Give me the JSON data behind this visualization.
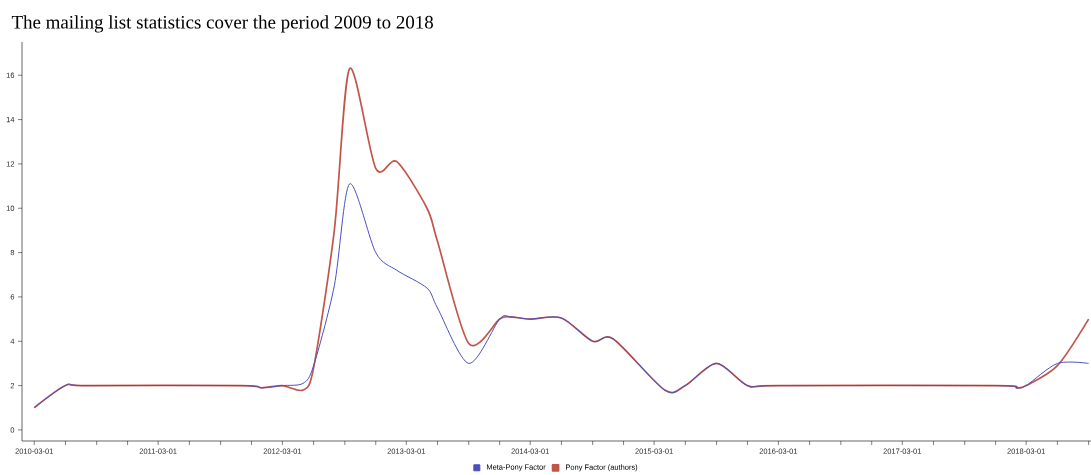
{
  "chart_data": {
    "type": "line",
    "title": "The mailing list statistics cover the period 2009 to 2018",
    "x": [
      "2010-03-01",
      "2010-06-01",
      "2010-08-01",
      "2011-11-01",
      "2012-01-01",
      "2012-03-01",
      "2012-05-01",
      "2012-06-01",
      "2012-08-01",
      "2012-09-15",
      "2012-12-01",
      "2013-02-01",
      "2013-05-01",
      "2013-06-01",
      "2013-09-01",
      "2013-12-01",
      "2014-01-01",
      "2014-03-01",
      "2014-06-01",
      "2014-09-01",
      "2014-11-01",
      "2015-04-01",
      "2015-06-01",
      "2015-09-01",
      "2015-12-01",
      "2016-03-01",
      "2017-12-01",
      "2018-02-01",
      "2018-03-01",
      "2018-06-01",
      "2018-09-01"
    ],
    "series": [
      {
        "name": "Meta-Pony Factor",
        "color": "#4a4fc4",
        "values": [
          1,
          2,
          2,
          2,
          1.9,
          2,
          2.1,
          2.9,
          6.5,
          11.1,
          8,
          7.2,
          6.4,
          5.5,
          3,
          5,
          5.1,
          5,
          5.05,
          4,
          4.1,
          1.8,
          2,
          3,
          2,
          2,
          2,
          1.9,
          2,
          3,
          3
        ]
      },
      {
        "name": "Pony Factor (authors)",
        "color": "#c0564a",
        "values": [
          1,
          2,
          2,
          2,
          1.9,
          2,
          1.8,
          2.8,
          9,
          16.3,
          11.8,
          12.1,
          10,
          8.5,
          3.9,
          5,
          5.1,
          5,
          5.05,
          4,
          4.1,
          1.8,
          2,
          3,
          2,
          2,
          2,
          1.9,
          2,
          2.9,
          5
        ]
      }
    ],
    "xlim": [
      "2010-01-24",
      "2018-09-08"
    ],
    "ylim": [
      -0.5,
      17.5
    ],
    "yticks": [
      0,
      2,
      4,
      6,
      8,
      10,
      12,
      14,
      16
    ],
    "xticks": [
      "2010-03-01",
      {
        "value": "2010-06-01",
        "label": null
      },
      {
        "value": "2010-09-01",
        "label": null
      },
      {
        "value": "2010-12-01",
        "label": null
      },
      "2011-03-01",
      {
        "value": "2011-06-01",
        "label": null
      },
      {
        "value": "2011-09-01",
        "label": null
      },
      {
        "value": "2011-12-01",
        "label": null
      },
      "2012-03-01",
      {
        "value": "2012-06-01",
        "label": null
      },
      {
        "value": "2012-09-01",
        "label": null
      },
      {
        "value": "2012-12-01",
        "label": null
      },
      "2013-03-01",
      {
        "value": "2013-06-01",
        "label": null
      },
      {
        "value": "2013-09-01",
        "label": null
      },
      {
        "value": "2013-12-01",
        "label": null
      },
      "2014-03-01",
      {
        "value": "2014-06-01",
        "label": null
      },
      {
        "value": "2014-09-01",
        "label": null
      },
      {
        "value": "2014-12-01",
        "label": null
      },
      "2015-03-01",
      {
        "value": "2015-06-01",
        "label": null
      },
      {
        "value": "2015-09-01",
        "label": null
      },
      {
        "value": "2015-12-01",
        "label": null
      },
      "2016-03-01",
      {
        "value": "2016-06-01",
        "label": null
      },
      {
        "value": "2016-09-01",
        "label": null
      },
      {
        "value": "2016-12-01",
        "label": null
      },
      "2017-03-01",
      {
        "value": "2017-06-01",
        "label": null
      },
      {
        "value": "2017-09-01",
        "label": null
      },
      {
        "value": "2017-12-01",
        "label": null
      },
      "2018-03-01",
      {
        "value": "2018-06-01",
        "label": null
      },
      {
        "value": "2018-09-01",
        "label": null
      }
    ],
    "grid": false,
    "legend": "bottom",
    "marker": "none",
    "line_style": "solid"
  }
}
